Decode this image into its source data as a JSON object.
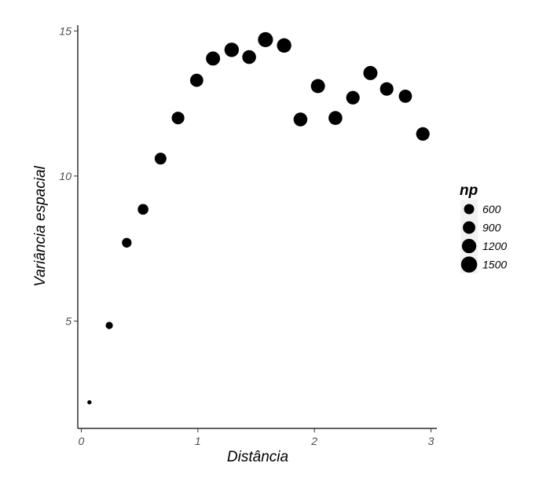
{
  "chart_data": {
    "type": "scatter",
    "title": "",
    "xlabel": "Distância",
    "ylabel": "Variância espacial",
    "xlim": [
      -0.03,
      3.05
    ],
    "ylim": [
      1.3,
      15.2
    ],
    "x_ticks": [
      0,
      1,
      2,
      3
    ],
    "x_tick_labels": [
      "0",
      "1",
      "2",
      "3"
    ],
    "y_ticks": [
      5,
      10,
      15
    ],
    "y_tick_labels": [
      "5",
      "10",
      "15"
    ],
    "grid": false,
    "point_color": "#000000",
    "size_variable": "np",
    "points": [
      {
        "x": 0.07,
        "y": 2.2,
        "np": 100
      },
      {
        "x": 0.24,
        "y": 4.85,
        "np": 300
      },
      {
        "x": 0.39,
        "y": 7.7,
        "np": 540
      },
      {
        "x": 0.53,
        "y": 8.85,
        "np": 660
      },
      {
        "x": 0.68,
        "y": 10.6,
        "np": 800
      },
      {
        "x": 0.83,
        "y": 12.0,
        "np": 920
      },
      {
        "x": 0.99,
        "y": 13.3,
        "np": 1000
      },
      {
        "x": 1.13,
        "y": 14.05,
        "np": 1150
      },
      {
        "x": 1.29,
        "y": 14.35,
        "np": 1200
      },
      {
        "x": 1.44,
        "y": 14.1,
        "np": 1100
      },
      {
        "x": 1.58,
        "y": 14.7,
        "np": 1300
      },
      {
        "x": 1.74,
        "y": 14.5,
        "np": 1200
      },
      {
        "x": 1.88,
        "y": 11.95,
        "np": 1100
      },
      {
        "x": 2.03,
        "y": 13.1,
        "np": 1150
      },
      {
        "x": 2.18,
        "y": 12.0,
        "np": 1100
      },
      {
        "x": 2.33,
        "y": 12.7,
        "np": 1050
      },
      {
        "x": 2.48,
        "y": 13.55,
        "np": 1150
      },
      {
        "x": 2.62,
        "y": 13.0,
        "np": 1050
      },
      {
        "x": 2.78,
        "y": 12.75,
        "np": 1000
      },
      {
        "x": 2.93,
        "y": 11.45,
        "np": 1050
      }
    ],
    "legend": {
      "title": "np",
      "placement": "right",
      "entries": [
        {
          "label": "600",
          "np": 600
        },
        {
          "label": "900",
          "np": 900
        },
        {
          "label": "1200",
          "np": 1200
        },
        {
          "label": "1500",
          "np": 1500
        }
      ]
    }
  }
}
